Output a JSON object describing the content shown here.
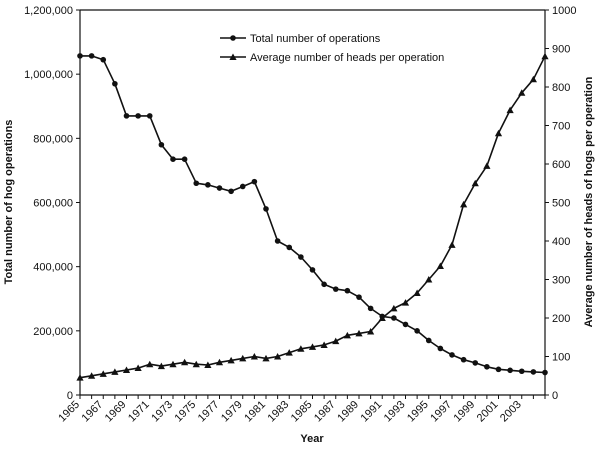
{
  "chart_data": {
    "type": "line",
    "title": "",
    "xlabel": "Year",
    "ylabel_left": "Total number of hog operations",
    "ylabel_right": "Average number of heads of hogs per operation",
    "x": [
      1965,
      1966,
      1967,
      1968,
      1969,
      1970,
      1971,
      1972,
      1973,
      1974,
      1975,
      1976,
      1977,
      1978,
      1979,
      1980,
      1981,
      1982,
      1983,
      1984,
      1985,
      1986,
      1987,
      1988,
      1989,
      1990,
      1991,
      1992,
      1993,
      1994,
      1995,
      1996,
      1997,
      1998,
      1999,
      2000,
      2001,
      2002,
      2003,
      2004,
      2005
    ],
    "x_tick_labels": [
      "1965",
      "1967",
      "1969",
      "1971",
      "1973",
      "1975",
      "1977",
      "1979",
      "1981",
      "1983",
      "1985",
      "1987",
      "1989",
      "1991",
      "1993",
      "1995",
      "1997",
      "1999",
      "2001",
      "2003"
    ],
    "y_left_range": [
      0,
      1200000
    ],
    "y_left_ticks": [
      "0",
      "200,000",
      "400,000",
      "600,000",
      "800,000",
      "1,000,000",
      "1,200,000"
    ],
    "y_right_range": [
      0,
      1000
    ],
    "y_right_ticks": [
      "0",
      "100",
      "200",
      "300",
      "400",
      "500",
      "600",
      "700",
      "800",
      "900",
      "1000"
    ],
    "grid": false,
    "legend_position": "top-center",
    "series": [
      {
        "name": "Total number of operations",
        "axis": "left",
        "marker": "circle",
        "values": [
          1057000,
          1057000,
          1045000,
          970000,
          870000,
          870000,
          870000,
          780000,
          735000,
          735000,
          660000,
          655000,
          645000,
          635000,
          650000,
          665000,
          580000,
          480000,
          460000,
          430000,
          390000,
          345000,
          330000,
          325000,
          305000,
          270000,
          245000,
          240000,
          220000,
          200000,
          170000,
          145000,
          125000,
          110000,
          100000,
          88000,
          80000,
          77000,
          74000,
          72000,
          70000
        ]
      },
      {
        "name": "Average number of  heads per operation",
        "axis": "right",
        "marker": "triangle",
        "values": [
          45,
          50,
          55,
          60,
          65,
          70,
          80,
          75,
          80,
          85,
          80,
          78,
          85,
          90,
          95,
          100,
          95,
          100,
          110,
          120,
          125,
          130,
          140,
          155,
          160,
          165,
          200,
          225,
          240,
          265,
          300,
          335,
          390,
          495,
          550,
          595,
          680,
          740,
          785,
          820,
          880
        ]
      }
    ]
  }
}
